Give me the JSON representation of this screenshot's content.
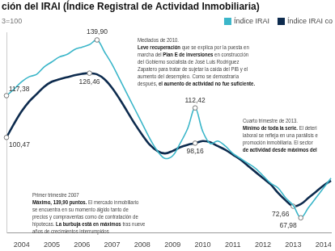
{
  "chart_data": {
    "type": "line",
    "title": "ción del IRAI (Índice Registral de Actividad Inmobiliaria)",
    "subtitle": "3=100",
    "categories": [
      null,
      null,
      "2004",
      null,
      null,
      null,
      "2005",
      null,
      null,
      null,
      "2006",
      null,
      null,
      null,
      "2007",
      null,
      null,
      null,
      "2008",
      null,
      null,
      null,
      "2009",
      null,
      null,
      null,
      "2010",
      null,
      null,
      null,
      "2011",
      null,
      null,
      null,
      "2012",
      null,
      null,
      null,
      "2013",
      null,
      null,
      null,
      "2014",
      null
    ],
    "series": [
      {
        "name": "Índice IRAI",
        "color": "#3bb6c9",
        "values": [
          117.38,
          120,
          123,
          125,
          126,
          129,
          131,
          133,
          134,
          136,
          137,
          138,
          139.9,
          135,
          130,
          124,
          118,
          112,
          106,
          100,
          95,
          92,
          93,
          98,
          104,
          112.42,
          103,
          98,
          99,
          97,
          94,
          92,
          90,
          88,
          85,
          82,
          80,
          76,
          73,
          67.98,
          72,
          76,
          80,
          84
        ],
        "value_labels": [
          "117,38",
          null,
          null,
          null,
          null,
          null,
          null,
          null,
          null,
          null,
          null,
          null,
          "139,90",
          null,
          null,
          null,
          null,
          null,
          null,
          null,
          null,
          null,
          null,
          null,
          null,
          "112,42",
          null,
          null,
          null,
          null,
          null,
          null,
          null,
          null,
          null,
          null,
          null,
          null,
          null,
          "67,98",
          null,
          null,
          null,
          null
        ]
      },
      {
        "name": "Índice IRAI co",
        "color": "#0d2b4e",
        "values": [
          100.47,
          106,
          111,
          115,
          118,
          121,
          123,
          124,
          124.8,
          125.6,
          126.2,
          126.46,
          126,
          124,
          120.5,
          116,
          111,
          106,
          101.5,
          97.5,
          95,
          94,
          95,
          96.5,
          97.5,
          98.16,
          99,
          98.5,
          97,
          95.5,
          93.5,
          91.5,
          89,
          86.5,
          84,
          81.5,
          78,
          75,
          72.66,
          73.5,
          76,
          78.5,
          81,
          83
        ],
        "value_labels": [
          "100,47",
          null,
          null,
          null,
          null,
          null,
          null,
          null,
          null,
          null,
          null,
          "126,46",
          null,
          null,
          null,
          null,
          null,
          null,
          null,
          null,
          null,
          null,
          null,
          null,
          null,
          "98,16",
          null,
          null,
          null,
          null,
          null,
          null,
          null,
          null,
          null,
          null,
          null,
          null,
          "72,66",
          null,
          null,
          null,
          null,
          null
        ]
      }
    ],
    "ylim": [
      62,
      143
    ],
    "grid": false,
    "tick_labels": "x",
    "data_labels": true,
    "legend": "top right",
    "annotations": [
      {
        "lines": [
          "Mediados de 2010.",
          "Leve recuperación que se explica por la puesta en",
          "marcha del Plan E de inversiones en construcción",
          "del Gobierno socialista de José Luis Rodríguez",
          "Zapatero para tratar de sujetar la caída del PIB y el",
          "aumento del desempleo. Como se demostraría",
          "después, el aumento de actividad no fue suficiente."
        ],
        "emphasis": [
          "Leve recuperación",
          "Plan E de inversiones",
          "el aumento de actividad no fue suficiente."
        ]
      },
      {
        "lines": [
          "Cuarto trimestre de 2013.",
          "Mínimo de toda la serie. El deteri",
          "laboral se refleja en una parálisis e",
          "promoción inmobiliaria. El sector",
          "de actividad desde máximos del"
        ],
        "emphasis": [
          "Mínimo de toda la serie.",
          "de actividad desde máximos del"
        ]
      },
      {
        "lines": [
          "Primer trimestre 2007",
          "Máximo, 139,90 puntos. El mercado inmobiliario",
          "se encuentra en su momento álgido tanto de",
          "precios y compraventas como de contratación de",
          "hipotecas. La burbuja está en máximos tras nueve",
          "años de crecimientos interrumpidos"
        ],
        "emphasis": [
          "Máximo, 139,90 puntos.",
          "La burbuja está en máximos"
        ]
      }
    ]
  }
}
